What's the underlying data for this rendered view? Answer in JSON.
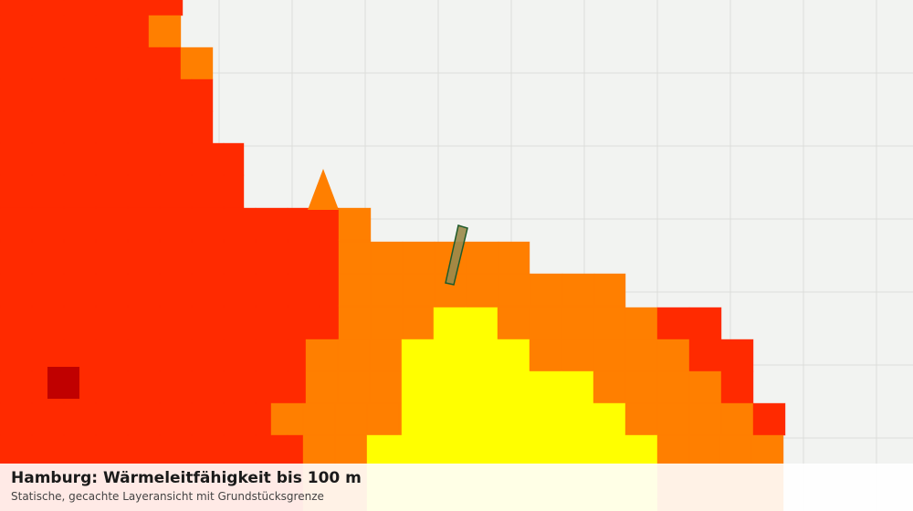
{
  "header": {
    "title": "Hamburg: Wärmeleitfähigkeit bis 100 m",
    "subtitle": "Statische, gecachte Layeransicht mit Grundstücksgrenze"
  }
}
